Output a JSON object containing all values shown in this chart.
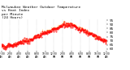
{
  "title": "Milwaukee Weather Outdoor Temperature\nvs Heat Index\nper Minute\n(24 Hours)",
  "title_fontsize": 3.2,
  "bg_color": "#ffffff",
  "temp_color": "#ff0000",
  "heat_color": "#ffa500",
  "ylim": [
    58,
    96
  ],
  "xlim": [
    0,
    1440
  ],
  "yticks": [
    60,
    65,
    70,
    75,
    80,
    85,
    90,
    95
  ],
  "ytick_labels": [
    "6-",
    "6 ",
    "7-",
    "7 ",
    "8-",
    "8 ",
    "9-",
    "9 "
  ],
  "ytick_fontsize": 3.0,
  "xtick_fontsize": 2.2,
  "grid_color": "#aaaaaa",
  "n_points": 1440,
  "peak_minute": 870,
  "base_temp": 62,
  "peak_temp": 90,
  "start_temp": 63,
  "end_temp": 69
}
